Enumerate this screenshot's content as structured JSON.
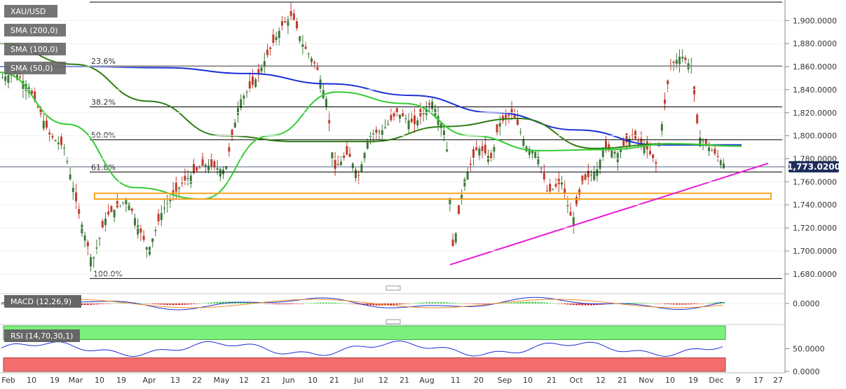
{
  "chart_data": [
    {
      "type": "candlestick",
      "symbol": "XAU/USD",
      "current_price": 1773.02,
      "current_price_label": "1,773.0200",
      "ylim": [
        1672,
        1916
      ],
      "yticks": [
        1680,
        1700,
        1720,
        1740,
        1760,
        1780,
        1800,
        1820,
        1840,
        1860,
        1880,
        1900
      ],
      "ytick_labels": [
        "1,680.0000",
        "1,700.0000",
        "1,720.0000",
        "1,740.0000",
        "1,760.0000",
        "1,780.0000",
        "1,800.0000",
        "1,820.0000",
        "1,840.0000",
        "1,860.0000",
        "1,880.0000",
        "1,900.0000"
      ],
      "x_labels": [
        "Feb",
        "10",
        "19",
        "Mar",
        "10",
        "19",
        "Apr",
        "13",
        "22",
        "May",
        "12",
        "21",
        "Jun",
        "10",
        "21",
        "Jul",
        "12",
        "21",
        "Aug",
        "11",
        "20",
        "Sep",
        "10",
        "21",
        "Oct",
        "12",
        "21",
        "Nov",
        "10",
        "19",
        "Dec",
        "9",
        "17",
        "27"
      ],
      "indicators": [
        {
          "label": "SMA (200,0)",
          "color": "#1a2fd6",
          "values": [
            1860,
            1860,
            1859,
            1854,
            1845,
            1835,
            1820,
            1805,
            1792,
            1792
          ]
        },
        {
          "label": "SMA (100,0)",
          "color": "#2e7d12",
          "values": [
            1880,
            1862,
            1830,
            1800,
            1795,
            1795,
            1808,
            1815,
            1789,
            1793,
            1791
          ]
        },
        {
          "label": "SMA (50,0)",
          "color": "#33cc33",
          "values": [
            1855,
            1810,
            1755,
            1745,
            1800,
            1838,
            1828,
            1800,
            1787,
            1788,
            1793,
            1791
          ]
        }
      ],
      "fibonacci": [
        {
          "label": "23.6%",
          "price": 1860.5
        },
        {
          "label": "38.2%",
          "price": 1825
        },
        {
          "label": "50.0%",
          "price": 1796.5
        },
        {
          "label": "61.8%",
          "price": 1768.5
        },
        {
          "label": "100.0%",
          "price": 1676
        }
      ],
      "top_line_price": 1916,
      "support_zone": [
        1745,
        1750
      ],
      "trendline": {
        "from": [
          "Aug",
          1688
        ],
        "to": [
          "Dec",
          1776
        ]
      }
    },
    {
      "type": "line",
      "label": "MACD (12,26,9)",
      "yticks": [
        0
      ],
      "ytick_labels": [
        "0.0000"
      ]
    },
    {
      "type": "line",
      "label": "RSI (14,70,30,1)",
      "ylim": [
        0,
        100
      ],
      "yticks": [
        50,
        0
      ],
      "ytick_labels": [
        "50.0000",
        "0.0000"
      ],
      "bands": {
        "overbought": 70,
        "oversold": 30
      }
    }
  ],
  "colors": {
    "up_candle": "#3d7a3a",
    "down_candle": "#c23b2e",
    "badge_bg": "#666666",
    "badge_text": "#ffffff",
    "price_badge": "#1e2e5c",
    "fib_line": "#000000",
    "support_zone": "#f5a623",
    "trendline": "#e81ad6",
    "rsi_overbought_fill": "#7cf07c",
    "rsi_oversold_fill": "#f36d6d"
  }
}
